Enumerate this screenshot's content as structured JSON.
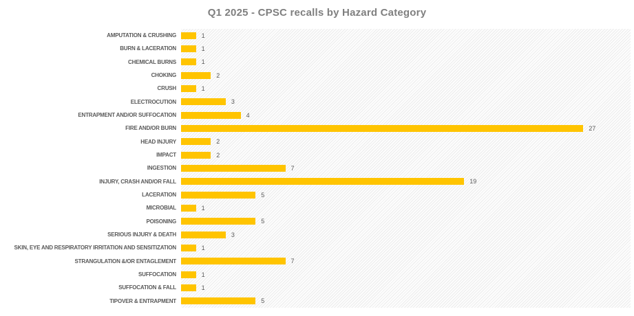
{
  "title": "Q1 2025 - CPSC recalls by Hazard Category",
  "colors": {
    "bar": "#FFC400",
    "category_label": "#595959",
    "value_label": "#595959",
    "title": "#7F7F7F",
    "plot_hatch": "#E9E9E9"
  },
  "chart_data": {
    "type": "bar",
    "orientation": "horizontal",
    "title": "Q1 2025 - CPSC recalls by Hazard Category",
    "xlabel": "",
    "ylabel": "",
    "xlim": [
      0,
      30.4
    ],
    "grid": false,
    "legend": false,
    "plot_background": "diagonal-hatch",
    "categories": [
      "AMPUTATION & CRUSHING",
      "BURN & LACERATION",
      "CHEMICAL BURNS",
      "CHOKING",
      "CRUSH",
      "ELECTROCUTION",
      "ENTRAPMENT AND/OR SUFFOCATION",
      "FIRE AND/OR BURN",
      "HEAD INJURY",
      "IMPACT",
      "INGESTION",
      "INJURY, CRASH AND/OR FALL",
      "LACERATION",
      "MICROBIAL",
      "POISONING",
      "SERIOUS INJURY & DEATH",
      "SKIN, EYE AND RESPIRATORY IRRITATION AND SENSITIZATION",
      "STRANGULATION &/OR ENTAGLEMENT",
      "SUFFOCATION",
      "SUFFOCATION & FALL",
      "TIPOVER & ENTRAPMENT"
    ],
    "values": [
      1,
      1,
      1,
      2,
      1,
      3,
      4,
      27,
      2,
      2,
      7,
      19,
      5,
      1,
      5,
      3,
      1,
      7,
      1,
      1,
      5
    ]
  }
}
